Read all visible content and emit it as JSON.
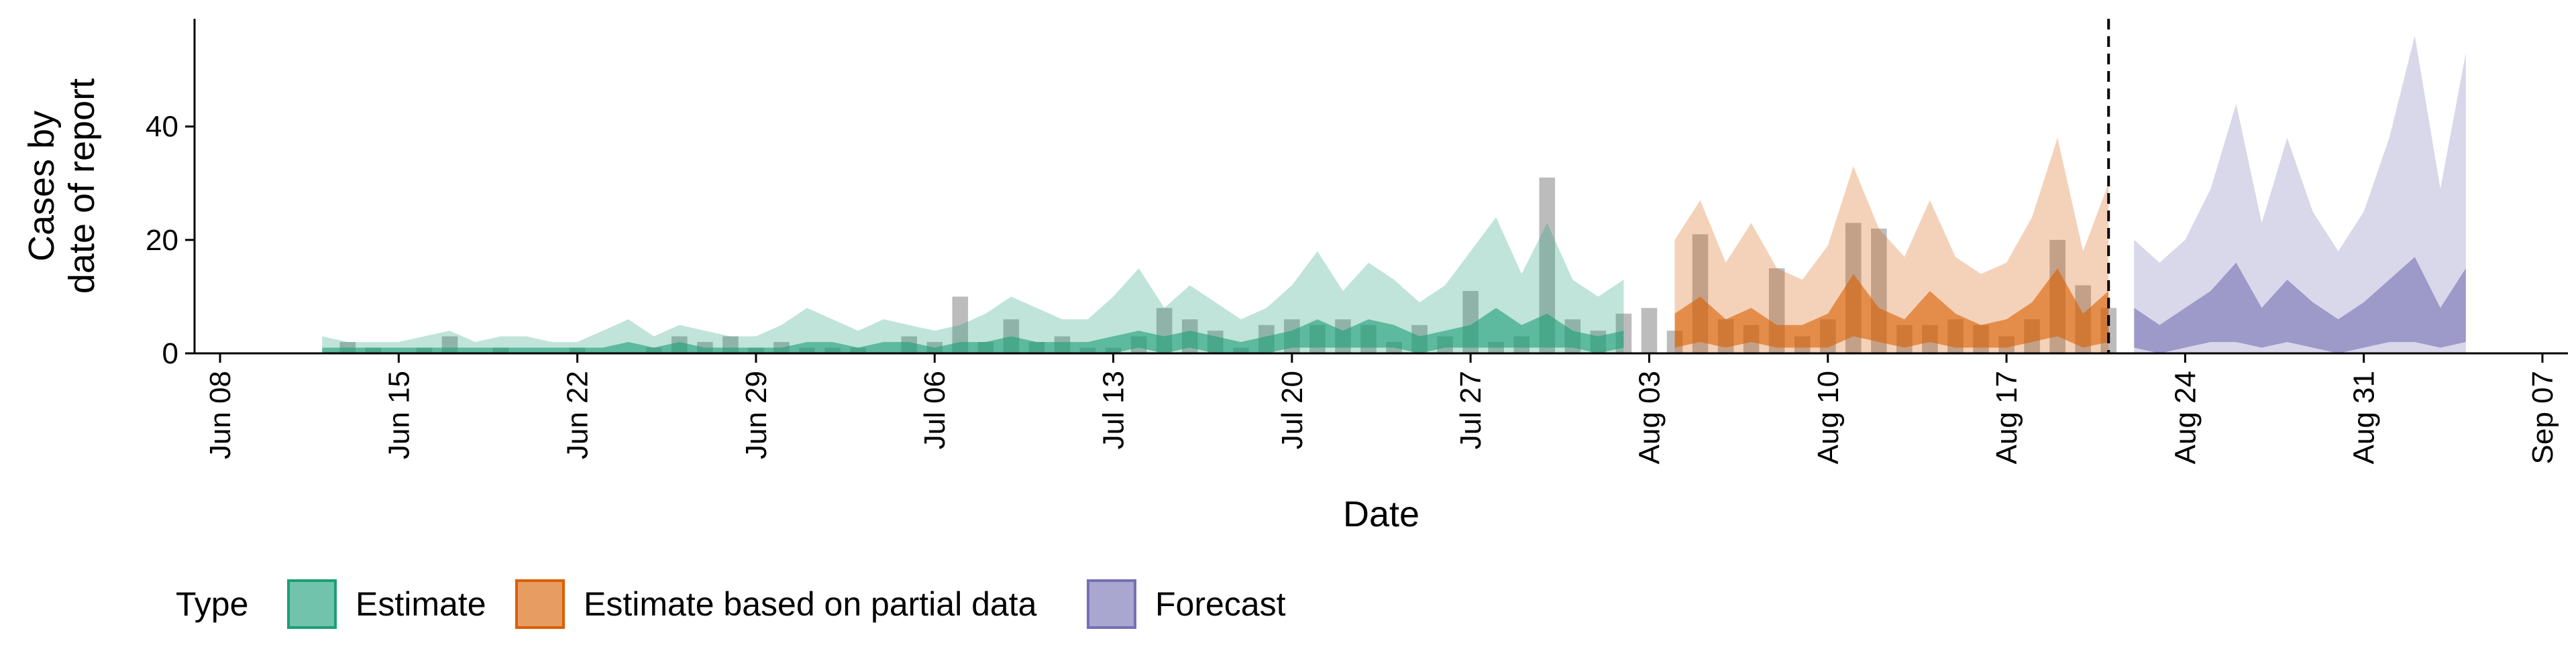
{
  "chart_data": {
    "type": "area",
    "xlabel": "Date",
    "ylabel_lines": [
      "Cases by",
      "date of report"
    ],
    "xlim": [
      "2020-06-07",
      "2020-09-08"
    ],
    "ylim": [
      0,
      59
    ],
    "yticks": [
      0,
      20,
      40
    ],
    "xticks": [
      "2020-06-08",
      "2020-06-15",
      "2020-06-22",
      "2020-06-29",
      "2020-07-06",
      "2020-07-13",
      "2020-07-20",
      "2020-07-27",
      "2020-08-03",
      "2020-08-10",
      "2020-08-17",
      "2020-08-24",
      "2020-08-31",
      "2020-09-07"
    ],
    "xtick_labels": [
      "Jun 08",
      "Jun 15",
      "Jun 22",
      "Jun 29",
      "Jul 06",
      "Jul 13",
      "Jul 20",
      "Jul 27",
      "Aug 03",
      "Aug 10",
      "Aug 17",
      "Aug 24",
      "Aug 31",
      "Sep 07"
    ],
    "vline": "2020-08-21",
    "colors": {
      "estimate": "#1b9e77",
      "partial": "#d95f02",
      "forecast": "#7570b3",
      "bars": "#a0a0a0"
    },
    "legend": {
      "title": "Type",
      "position": "bottom",
      "entries": [
        {
          "key": "estimate",
          "label": "Estimate"
        },
        {
          "key": "partial",
          "label": "Estimate based on partial data"
        },
        {
          "key": "forecast",
          "label": "Forecast"
        }
      ]
    },
    "bars": {
      "start": "2020-06-13",
      "values": [
        2,
        1,
        0,
        1,
        3,
        0,
        1,
        0,
        0,
        1,
        0,
        0,
        1,
        3,
        2,
        3,
        1,
        2,
        1,
        1,
        1,
        0,
        3,
        2,
        10,
        2,
        6,
        2,
        3,
        1,
        1,
        3,
        8,
        6,
        4,
        1,
        5,
        6,
        5,
        6,
        5,
        2,
        5,
        3,
        11,
        2,
        3,
        31,
        6,
        4,
        7,
        8,
        4,
        21,
        6,
        5,
        15,
        3,
        6,
        23,
        22,
        5,
        5,
        6,
        5,
        3,
        6,
        20,
        12,
        8
      ]
    },
    "series": [
      {
        "name": "Estimate",
        "start": "2020-06-12",
        "outer_upper": [
          3,
          2,
          2,
          2,
          3,
          4,
          2,
          3,
          3,
          2,
          2,
          4,
          6,
          3,
          5,
          4,
          3,
          3,
          5,
          8,
          6,
          4,
          6,
          5,
          4,
          5,
          7,
          10,
          8,
          6,
          6,
          10,
          15,
          8,
          12,
          9,
          6,
          8,
          12,
          18,
          11,
          16,
          13,
          9,
          12,
          18,
          24,
          14,
          23,
          13,
          10,
          13
        ],
        "inner_upper": [
          1,
          1,
          1,
          1,
          1,
          1,
          1,
          1,
          1,
          1,
          1,
          1,
          2,
          1,
          2,
          1,
          1,
          1,
          1,
          2,
          2,
          1,
          2,
          2,
          1,
          2,
          2,
          3,
          2,
          2,
          2,
          3,
          4,
          3,
          4,
          3,
          2,
          3,
          4,
          6,
          4,
          6,
          5,
          3,
          4,
          5,
          8,
          5,
          7,
          4,
          3,
          4
        ],
        "inner_lower": [
          0,
          0,
          0,
          0,
          0,
          0,
          0,
          0,
          0,
          0,
          0,
          0,
          0,
          0,
          0,
          0,
          0,
          0,
          0,
          0,
          0,
          0,
          0,
          0,
          0,
          0,
          0,
          0,
          0,
          0,
          0,
          0,
          1,
          0,
          1,
          0,
          0,
          0,
          1,
          1,
          1,
          1,
          1,
          0,
          1,
          1,
          1,
          1,
          1,
          1,
          0,
          1
        ],
        "outer_lower": [
          0,
          0,
          0,
          0,
          0,
          0,
          0,
          0,
          0,
          0,
          0,
          0,
          0,
          0,
          0,
          0,
          0,
          0,
          0,
          0,
          0,
          0,
          0,
          0,
          0,
          0,
          0,
          0,
          0,
          0,
          0,
          0,
          0,
          0,
          0,
          0,
          0,
          0,
          0,
          0,
          0,
          0,
          0,
          0,
          0,
          0,
          0,
          0,
          0,
          0,
          0,
          0
        ]
      },
      {
        "name": "Estimate based on partial data",
        "start": "2020-08-04",
        "outer_upper": [
          20,
          27,
          16,
          23,
          15,
          13,
          19,
          33,
          22,
          17,
          27,
          17,
          14,
          16,
          24,
          38,
          18,
          30
        ],
        "inner_upper": [
          7,
          10,
          6,
          8,
          5,
          5,
          7,
          14,
          8,
          6,
          11,
          7,
          5,
          6,
          9,
          15,
          7,
          11
        ],
        "inner_lower": [
          1,
          2,
          1,
          2,
          1,
          1,
          1,
          3,
          2,
          1,
          2,
          1,
          1,
          1,
          2,
          3,
          1,
          2
        ],
        "outer_lower": [
          0,
          0,
          0,
          0,
          0,
          0,
          0,
          0,
          0,
          0,
          0,
          0,
          0,
          0,
          0,
          0,
          0,
          0
        ]
      },
      {
        "name": "Forecast",
        "start": "2020-08-22",
        "outer_upper": [
          20,
          16,
          20,
          29,
          44,
          23,
          38,
          25,
          18,
          25,
          38,
          56,
          29,
          53
        ],
        "inner_upper": [
          8,
          5,
          8,
          11,
          16,
          8,
          13,
          9,
          6,
          9,
          13,
          17,
          8,
          15
        ],
        "inner_lower": [
          1,
          0,
          1,
          2,
          2,
          1,
          2,
          1,
          0,
          1,
          2,
          2,
          1,
          2
        ],
        "outer_lower": [
          0,
          0,
          0,
          0,
          0,
          0,
          0,
          0,
          0,
          0,
          0,
          0,
          0,
          0
        ]
      }
    ]
  }
}
